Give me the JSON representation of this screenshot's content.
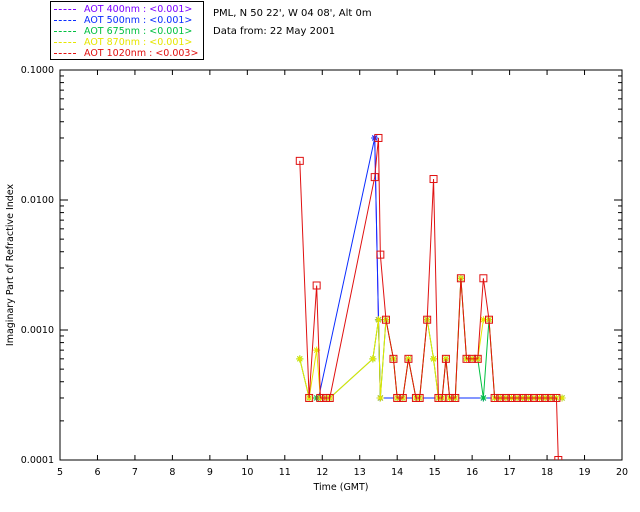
{
  "station_info": "PML, N 50 22', W 04 08', Alt 0m",
  "date_info": "Data from: 22 May 2001",
  "colors": {
    "aot400": "#7b00ff",
    "aot500": "#0a2cff",
    "aot675": "#00c040",
    "aot870": "#e6e600",
    "aot1020": "#e01010"
  },
  "chart_data": {
    "type": "line",
    "title": "",
    "xlabel": "Time (GMT)",
    "ylabel": "Imaginary Part of Refractive Index",
    "xlim": [
      5,
      20
    ],
    "ylim": [
      0.0001,
      0.1
    ],
    "yscale": "log",
    "x_ticks": [
      "5",
      "6",
      "7",
      "8",
      "9",
      "10",
      "11",
      "12",
      "13",
      "14",
      "15",
      "16",
      "17",
      "18",
      "19",
      "20"
    ],
    "y_ticks": [
      "0.0001",
      "0.0010",
      "0.0100",
      "0.1000"
    ],
    "legend_position": "top-left",
    "series": [
      {
        "name": "AOT 400nm : <0.001>",
        "color": "#7b00ff",
        "marker": "star",
        "points": [
          [
            13.4,
            0.03
          ],
          [
            13.5,
            0.0012
          ],
          [
            13.55,
            0.0003
          ]
        ]
      },
      {
        "name": "AOT 500nm : <0.001>",
        "color": "#0a2cff",
        "marker": "star",
        "points": [
          [
            11.9,
            0.0003
          ],
          [
            13.4,
            0.03
          ],
          [
            13.5,
            0.0012
          ],
          [
            13.55,
            0.0003
          ],
          [
            16.3,
            0.0003
          ],
          [
            18.4,
            0.0003
          ]
        ]
      },
      {
        "name": "AOT 675nm : <0.001>",
        "color": "#00c040",
        "marker": "star",
        "points": [
          [
            11.4,
            0.0006
          ],
          [
            11.65,
            0.0003
          ],
          [
            11.85,
            0.0003
          ],
          [
            11.95,
            0.0003
          ],
          [
            12.1,
            0.0003
          ],
          [
            12.2,
            0.0003
          ],
          [
            13.35,
            0.0006
          ],
          [
            13.5,
            0.0012
          ],
          [
            13.55,
            0.0003
          ],
          [
            13.7,
            0.0012
          ],
          [
            13.9,
            0.0006
          ],
          [
            14.0,
            0.0003
          ],
          [
            14.15,
            0.0003
          ],
          [
            14.3,
            0.0006
          ],
          [
            14.5,
            0.0003
          ],
          [
            14.6,
            0.0003
          ],
          [
            14.8,
            0.0012
          ],
          [
            14.97,
            0.0006
          ],
          [
            15.1,
            0.0003
          ],
          [
            15.2,
            0.0003
          ],
          [
            15.3,
            0.0006
          ],
          [
            15.4,
            0.0003
          ],
          [
            15.55,
            0.0003
          ],
          [
            15.7,
            0.0025
          ],
          [
            15.85,
            0.0006
          ],
          [
            16.0,
            0.0006
          ],
          [
            16.15,
            0.0006
          ],
          [
            16.3,
            0.0003
          ],
          [
            16.45,
            0.0012
          ],
          [
            16.6,
            0.0003
          ],
          [
            16.75,
            0.0003
          ],
          [
            16.9,
            0.0003
          ],
          [
            17.05,
            0.0003
          ],
          [
            17.2,
            0.0003
          ],
          [
            17.35,
            0.0003
          ],
          [
            17.5,
            0.0003
          ],
          [
            17.65,
            0.0003
          ],
          [
            17.8,
            0.0003
          ],
          [
            17.95,
            0.0003
          ],
          [
            18.1,
            0.0003
          ],
          [
            18.25,
            0.0003
          ],
          [
            18.4,
            0.0003
          ]
        ]
      },
      {
        "name": "AOT 870nm : <0.001>",
        "color": "#e6e600",
        "marker": "star",
        "points": [
          [
            11.4,
            0.0006
          ],
          [
            11.65,
            0.0003
          ],
          [
            11.85,
            0.0007
          ],
          [
            11.95,
            0.0003
          ],
          [
            12.1,
            0.0003
          ],
          [
            12.2,
            0.0003
          ],
          [
            13.35,
            0.0006
          ],
          [
            13.5,
            0.0012
          ],
          [
            13.55,
            0.0003
          ],
          [
            13.7,
            0.0012
          ],
          [
            13.9,
            0.0006
          ],
          [
            14.0,
            0.0003
          ],
          [
            14.15,
            0.0003
          ],
          [
            14.3,
            0.0006
          ],
          [
            14.5,
            0.0003
          ],
          [
            14.6,
            0.0003
          ],
          [
            14.8,
            0.0012
          ],
          [
            14.97,
            0.0006
          ],
          [
            15.1,
            0.0003
          ],
          [
            15.2,
            0.0003
          ],
          [
            15.3,
            0.0006
          ],
          [
            15.4,
            0.0003
          ],
          [
            15.55,
            0.0003
          ],
          [
            15.7,
            0.0025
          ],
          [
            15.85,
            0.0006
          ],
          [
            16.0,
            0.0006
          ],
          [
            16.15,
            0.0006
          ],
          [
            16.3,
            0.0012
          ],
          [
            16.45,
            0.0012
          ],
          [
            16.6,
            0.0003
          ],
          [
            16.75,
            0.0003
          ],
          [
            16.9,
            0.0003
          ],
          [
            17.05,
            0.0003
          ],
          [
            17.2,
            0.0003
          ],
          [
            17.35,
            0.0003
          ],
          [
            17.5,
            0.0003
          ],
          [
            17.65,
            0.0003
          ],
          [
            17.8,
            0.0003
          ],
          [
            17.95,
            0.0003
          ],
          [
            18.1,
            0.0003
          ],
          [
            18.25,
            0.0003
          ],
          [
            18.4,
            0.0003
          ]
        ]
      },
      {
        "name": "AOT 1020nm : <0.003>",
        "color": "#e01010",
        "marker": "square",
        "points": [
          [
            11.4,
            0.02
          ],
          [
            11.65,
            0.0003
          ],
          [
            11.85,
            0.0022
          ],
          [
            11.95,
            0.0003
          ],
          [
            12.1,
            0.0003
          ],
          [
            12.2,
            0.0003
          ],
          [
            13.4,
            0.015
          ],
          [
            13.5,
            0.03
          ],
          [
            13.55,
            0.0038
          ],
          [
            13.7,
            0.0012
          ],
          [
            13.9,
            0.0006
          ],
          [
            14.0,
            0.0003
          ],
          [
            14.15,
            0.0003
          ],
          [
            14.3,
            0.0006
          ],
          [
            14.5,
            0.0003
          ],
          [
            14.6,
            0.0003
          ],
          [
            14.8,
            0.0012
          ],
          [
            14.97,
            0.0145
          ],
          [
            15.1,
            0.0003
          ],
          [
            15.2,
            0.0003
          ],
          [
            15.3,
            0.0006
          ],
          [
            15.4,
            0.0003
          ],
          [
            15.55,
            0.0003
          ],
          [
            15.7,
            0.0025
          ],
          [
            15.85,
            0.0006
          ],
          [
            16.0,
            0.0006
          ],
          [
            16.15,
            0.0006
          ],
          [
            16.3,
            0.0025
          ],
          [
            16.45,
            0.0012
          ],
          [
            16.6,
            0.0003
          ],
          [
            16.75,
            0.0003
          ],
          [
            16.9,
            0.0003
          ],
          [
            17.05,
            0.0003
          ],
          [
            17.2,
            0.0003
          ],
          [
            17.35,
            0.0003
          ],
          [
            17.5,
            0.0003
          ],
          [
            17.65,
            0.0003
          ],
          [
            17.8,
            0.0003
          ],
          [
            17.95,
            0.0003
          ],
          [
            18.1,
            0.0003
          ],
          [
            18.25,
            0.0003
          ],
          [
            18.3,
            0.0001
          ]
        ]
      }
    ]
  }
}
